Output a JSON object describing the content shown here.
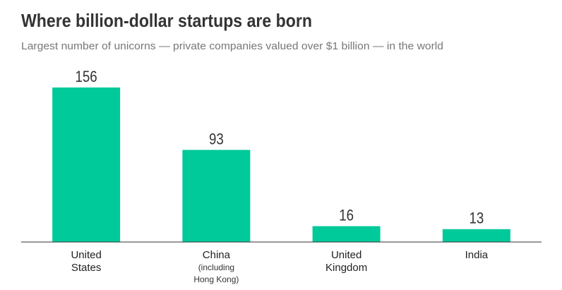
{
  "chart_data": {
    "type": "bar",
    "title": "Where billion-dollar startups are born",
    "subtitle": "Largest number of unicorns — private companies valued over $1 billion — in the world",
    "categories": [
      "United States",
      "China",
      "United Kingdom",
      "India"
    ],
    "category_notes": [
      null,
      "(including Hong Kong)",
      null,
      null
    ],
    "values": [
      156,
      93,
      16,
      13
    ],
    "color": "#00c99a"
  }
}
